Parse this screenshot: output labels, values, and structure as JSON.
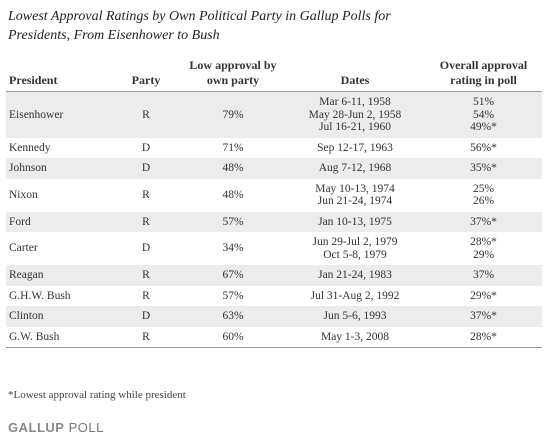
{
  "header": {
    "title": "Lowest Approval Ratings by Own Political Party in Gallup Polls for Presidents, From Eisenhower to Bush"
  },
  "table": {
    "columns": [
      "President",
      "Party",
      "Low approval by own party",
      "Dates",
      "Overall approval rating in poll"
    ],
    "rows": [
      {
        "president": "Eisenhower",
        "party": "R",
        "low": "79%",
        "dates": [
          "Mar 6-11, 1958",
          "May 28-Jun 2, 1958",
          "Jul 16-21, 1960"
        ],
        "overall": [
          "51%",
          "54%",
          "49%*"
        ]
      },
      {
        "president": "Kennedy",
        "party": "D",
        "low": "71%",
        "dates": [
          "Sep 12-17, 1963"
        ],
        "overall": [
          "56%*"
        ]
      },
      {
        "president": "Johnson",
        "party": "D",
        "low": "48%",
        "dates": [
          "Aug 7-12, 1968"
        ],
        "overall": [
          "35%*"
        ]
      },
      {
        "president": "Nixon",
        "party": "R",
        "low": "48%",
        "dates": [
          "May 10-13, 1974",
          "Jun 21-24, 1974"
        ],
        "overall": [
          "25%",
          "26%"
        ]
      },
      {
        "president": "Ford",
        "party": "R",
        "low": "57%",
        "dates": [
          "Jan 10-13, 1975"
        ],
        "overall": [
          "37%*"
        ]
      },
      {
        "president": "Carter",
        "party": "D",
        "low": "34%",
        "dates": [
          "Jun 29-Jul 2, 1979",
          "Oct 5-8, 1979"
        ],
        "overall": [
          "28%*",
          "29%"
        ]
      },
      {
        "president": "Reagan",
        "party": "R",
        "low": "67%",
        "dates": [
          "Jan 21-24, 1983"
        ],
        "overall": [
          "37%"
        ]
      },
      {
        "president": "G.H.W. Bush",
        "party": "R",
        "low": "57%",
        "dates": [
          "Jul 31-Aug 2, 1992"
        ],
        "overall": [
          "29%*"
        ]
      },
      {
        "president": "Clinton",
        "party": "D",
        "low": "63%",
        "dates": [
          "Jun 5-6, 1993"
        ],
        "overall": [
          "37%*"
        ]
      },
      {
        "president": "G.W. Bush",
        "party": "R",
        "low": "60%",
        "dates": [
          "May 1-3, 2008"
        ],
        "overall": [
          "28%*"
        ]
      }
    ]
  },
  "footnote": "*Lowest approval rating while president",
  "logo": {
    "brand": "GALLUP",
    "product": "POLL"
  }
}
